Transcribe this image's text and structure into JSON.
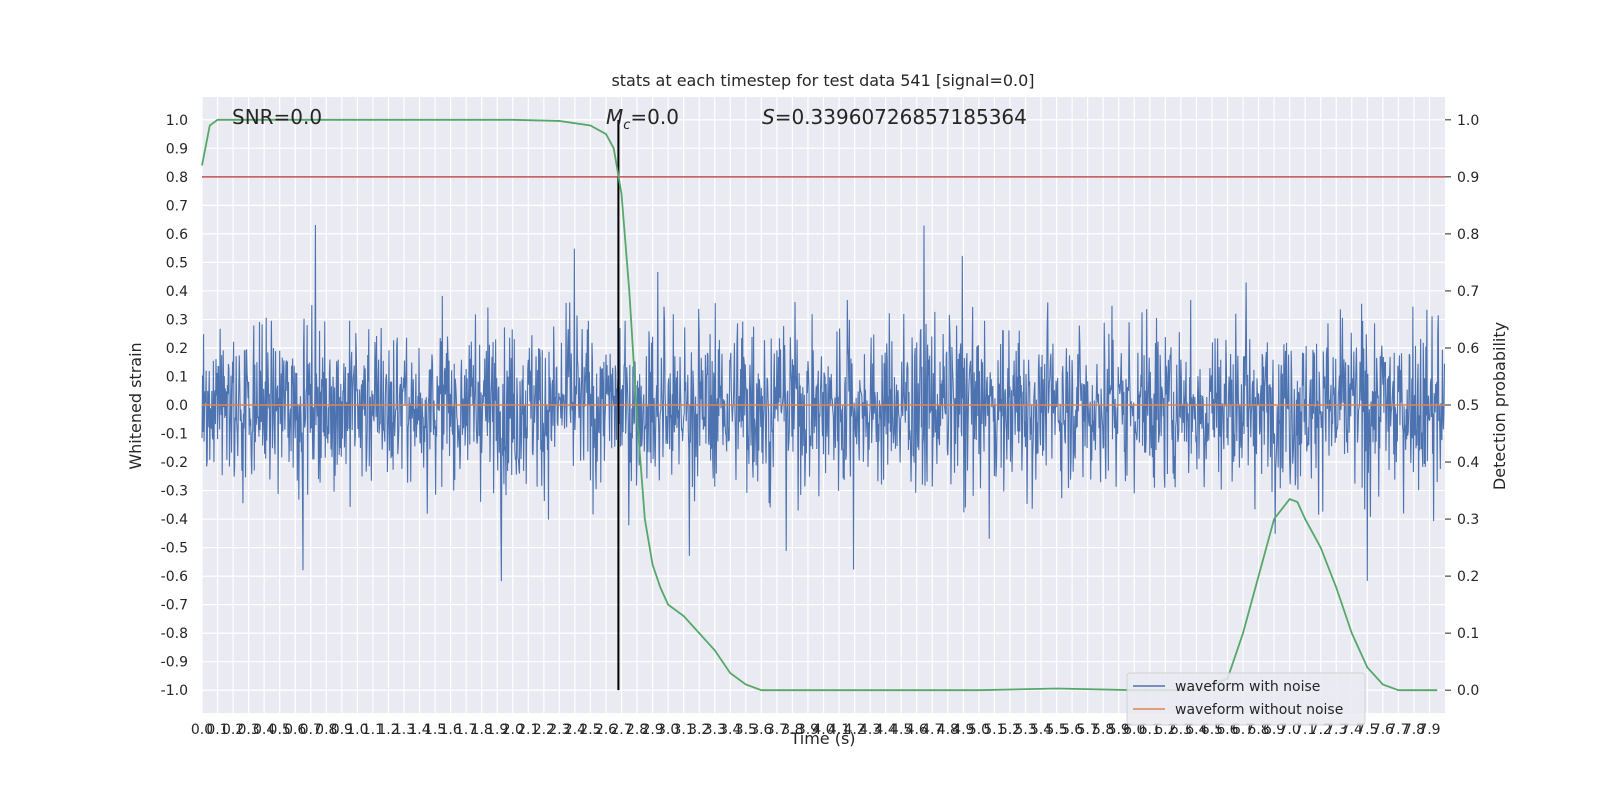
{
  "chart_data": {
    "type": "line",
    "title": "stats at each timestep for test data 541 [signal=0.0]",
    "xlabel": "Time (s)",
    "ylabel": "Whitened strain",
    "y2label": "Detection probability",
    "xlim": [
      0.0,
      8.0
    ],
    "ylim": [
      -1.08,
      1.08
    ],
    "y2lim": [
      -0.04,
      1.04
    ],
    "x_ticks": [
      "0.0",
      "0.1",
      "0.2",
      "0.3",
      "0.4",
      "0.5",
      "0.6",
      "0.7",
      "0.8",
      "0.9",
      "1.0",
      "1.1",
      "1.2",
      "1.3",
      "1.4",
      "1.5",
      "1.6",
      "1.7",
      "1.8",
      "1.9",
      "2.0",
      "2.1",
      "2.2",
      "2.3",
      "2.4",
      "2.5",
      "2.6",
      "2.7",
      "2.8",
      "2.9",
      "3.0",
      "3.1",
      "3.2",
      "3.3",
      "3.4",
      "3.5",
      "3.6",
      "3.7",
      "3.8",
      "3.9",
      "4.0",
      "4.1",
      "4.2",
      "4.3",
      "4.4",
      "4.5",
      "4.6",
      "4.7",
      "4.8",
      "4.9",
      "5.0",
      "5.1",
      "5.2",
      "5.3",
      "5.4",
      "5.5",
      "5.6",
      "5.7",
      "5.8",
      "5.9",
      "6.0",
      "6.1",
      "6.2",
      "6.3",
      "6.4",
      "6.5",
      "6.6",
      "6.7",
      "6.8",
      "6.9",
      "7.0",
      "7.1",
      "7.2",
      "7.3",
      "7.4",
      "7.5",
      "7.6",
      "7.7",
      "7.8",
      "7.9"
    ],
    "y_ticks": [
      "1.0",
      "0.9",
      "0.8",
      "0.7",
      "0.6",
      "0.5",
      "0.4",
      "0.3",
      "0.2",
      "0.1",
      "0.0",
      "-0.1",
      "-0.2",
      "-0.3",
      "-0.4",
      "-0.5",
      "-0.6",
      "-0.7",
      "-0.8",
      "-0.9",
      "-1.0"
    ],
    "y2_ticks": [
      "1.0",
      "0.9",
      "0.8",
      "0.7",
      "0.6",
      "0.5",
      "0.4",
      "0.3",
      "0.2",
      "0.1",
      "0.0"
    ],
    "grid": true,
    "legend_position": "lower-right",
    "series": [
      {
        "name": "waveform with noise",
        "color": "#4c72b0",
        "axis": "left",
        "description_values": "dense noise, roughly within [-0.97, 1.0]"
      },
      {
        "name": "waveform without noise",
        "color": "#dd8452",
        "axis": "left",
        "values_const": 0.0
      },
      {
        "color": "#55a868",
        "axis": "right",
        "x": [
          0.0,
          0.05,
          0.1,
          0.2,
          0.5,
          1.0,
          1.5,
          2.0,
          2.3,
          2.5,
          2.6,
          2.65,
          2.7,
          2.75,
          2.8,
          2.85,
          2.9,
          2.95,
          3.0,
          3.1,
          3.2,
          3.3,
          3.4,
          3.5,
          3.6,
          3.7,
          4.0,
          4.5,
          5.0,
          5.5,
          6.0,
          6.4,
          6.6,
          6.7,
          6.8,
          6.9,
          7.0,
          7.05,
          7.1,
          7.2,
          7.3,
          7.4,
          7.5,
          7.6,
          7.7,
          7.8,
          7.95
        ],
        "values": [
          0.92,
          0.99,
          1.0,
          1.0,
          1.0,
          1.0,
          1.0,
          1.0,
          0.998,
          0.99,
          0.975,
          0.95,
          0.87,
          0.7,
          0.48,
          0.3,
          0.22,
          0.18,
          0.15,
          0.13,
          0.1,
          0.07,
          0.03,
          0.01,
          0.0,
          0.0,
          0.0,
          0.0,
          0.0,
          0.003,
          0.0,
          0.0,
          0.02,
          0.1,
          0.2,
          0.3,
          0.335,
          0.33,
          0.3,
          0.25,
          0.18,
          0.1,
          0.04,
          0.01,
          0.0,
          0.0,
          0.0
        ]
      }
    ],
    "hlines": [
      {
        "y": 0.8,
        "color": "#c44e52"
      },
      {
        "y": 0.0,
        "color": "#dd8452"
      }
    ],
    "vlines": [
      {
        "x": 2.68,
        "color": "#000000"
      }
    ],
    "annotations": {
      "snr": "SNR=0.0",
      "mc": "=0.0",
      "mc_symbol": "M",
      "mc_subscript": "c",
      "s": "=0.33960726857185364",
      "s_symbol": "S"
    }
  }
}
